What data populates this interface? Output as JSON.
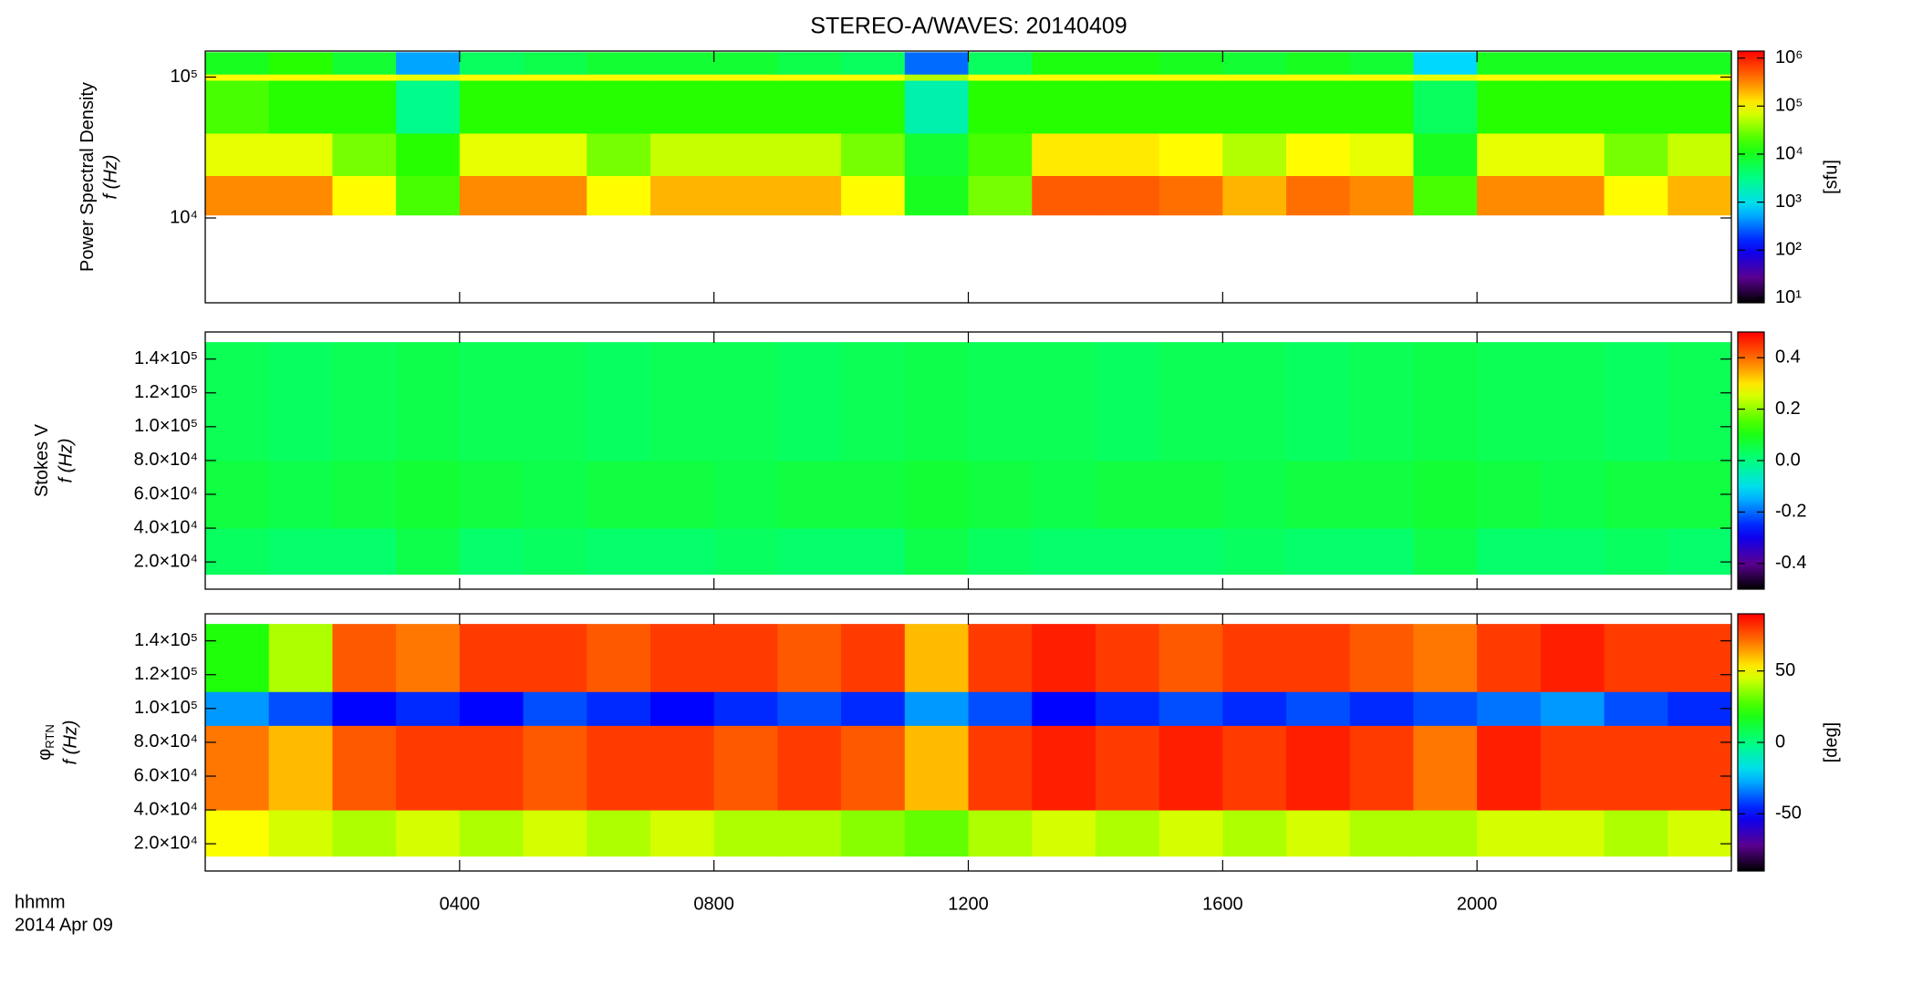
{
  "chart_data": [
    {
      "type": "spectrogram",
      "title": "STEREO-A/WAVES: 20140409",
      "ylabel": "Power Spectral Density",
      "ylabel2": "f (Hz)",
      "ylog": true,
      "ylim": [
        2500,
        153000
      ],
      "yticks": [
        {
          "value": 10000,
          "label": "10⁴"
        },
        {
          "value": 100000,
          "label": "10⁵"
        }
      ],
      "x_bins": [
        0,
        1,
        2,
        3,
        4,
        5,
        6,
        7,
        8,
        9,
        10,
        11,
        12,
        13,
        14,
        15,
        16,
        17,
        18,
        19,
        20,
        21,
        22,
        23,
        24
      ],
      "y_bins": [
        10500,
        20000,
        40000,
        95000,
        105000,
        150000
      ],
      "values": [
        [
          300000,
          300000,
          100000,
          20000,
          300000,
          300000,
          100000,
          200000,
          200000,
          200000,
          100000,
          10000,
          30000,
          500000,
          500000,
          400000,
          200000,
          400000,
          300000,
          20000,
          300000,
          300000,
          100000,
          200000
        ],
        [
          80000,
          80000,
          30000,
          15000,
          80000,
          80000,
          30000,
          60000,
          60000,
          60000,
          30000,
          8000,
          20000,
          120000,
          120000,
          100000,
          50000,
          100000,
          80000,
          10000,
          80000,
          80000,
          30000,
          60000
        ],
        [
          20000,
          15000,
          15000,
          3000,
          15000,
          15000,
          15000,
          15000,
          15000,
          15000,
          15000,
          2000,
          15000,
          15000,
          15000,
          15000,
          15000,
          15000,
          15000,
          5000,
          15000,
          15000,
          15000,
          15000
        ],
        [
          100000,
          100000,
          100000,
          80000,
          100000,
          100000,
          100000,
          100000,
          100000,
          100000,
          100000,
          50000,
          100000,
          100000,
          100000,
          100000,
          100000,
          100000,
          100000,
          80000,
          100000,
          100000,
          100000,
          100000
        ],
        [
          10000,
          15000,
          8000,
          500,
          5000,
          6000,
          8000,
          8000,
          8000,
          6000,
          5000,
          300,
          5000,
          12000,
          12000,
          10000,
          8000,
          10000,
          8000,
          800,
          10000,
          10000,
          10000,
          10000
        ]
      ],
      "colormap": "rainbow",
      "zlog": true,
      "zlim": [
        8,
        1400000
      ],
      "zticks": [
        {
          "value": 10,
          "label": "10¹"
        },
        {
          "value": 100,
          "label": "10²"
        },
        {
          "value": 1000,
          "label": "10³"
        },
        {
          "value": 10000,
          "label": "10⁴"
        },
        {
          "value": 100000,
          "label": "10⁵"
        },
        {
          "value": 1000000,
          "label": "10⁶"
        }
      ],
      "zlabel": "[sfu]"
    },
    {
      "type": "spectrogram",
      "ylabel": "Stokes V",
      "ylabel2": "f (Hz)",
      "ylog": false,
      "ylim": [
        3900,
        156000
      ],
      "yticks": [
        {
          "value": 20000,
          "label": "2.0×10⁴"
        },
        {
          "value": 40000,
          "label": "4.0×10⁴"
        },
        {
          "value": 60000,
          "label": "6.0×10⁴"
        },
        {
          "value": 80000,
          "label": "8.0×10⁴"
        },
        {
          "value": 100000,
          "label": "1.0×10⁵"
        },
        {
          "value": 120000,
          "label": "1.2×10⁵"
        },
        {
          "value": 140000,
          "label": "1.4×10⁵"
        }
      ],
      "x_bins": [
        0,
        1,
        2,
        3,
        4,
        5,
        6,
        7,
        8,
        9,
        10,
        11,
        12,
        13,
        14,
        15,
        16,
        17,
        18,
        19,
        20,
        21,
        22,
        23,
        24
      ],
      "y_bins": [
        12700,
        40000,
        80000,
        150000
      ],
      "values": [
        [
          0.03,
          0.02,
          0.02,
          0.05,
          0.02,
          0.03,
          0.02,
          0.02,
          0.03,
          0.02,
          0.02,
          0.05,
          0.03,
          0.02,
          0.02,
          0.02,
          0.03,
          0.02,
          0.02,
          0.05,
          0.02,
          0.02,
          0.03,
          0.02
        ],
        [
          0.06,
          0.05,
          0.06,
          0.07,
          0.06,
          0.05,
          0.06,
          0.06,
          0.05,
          0.06,
          0.06,
          0.07,
          0.06,
          0.05,
          0.06,
          0.06,
          0.05,
          0.06,
          0.06,
          0.07,
          0.06,
          0.05,
          0.06,
          0.06
        ],
        [
          0.04,
          0.03,
          0.04,
          0.05,
          0.04,
          0.04,
          0.03,
          0.04,
          0.04,
          0.03,
          0.04,
          0.05,
          0.04,
          0.04,
          0.03,
          0.04,
          0.04,
          0.03,
          0.04,
          0.05,
          0.04,
          0.04,
          0.03,
          0.04
        ]
      ],
      "colormap": "rainbow",
      "zlog": false,
      "zlim": [
        -0.5,
        0.5
      ],
      "zticks": [
        -0.4,
        -0.2,
        {
          "value": 0,
          "label": "0.0"
        },
        0.2,
        0.4
      ]
    },
    {
      "type": "spectrogram",
      "ylabel": "φ",
      "ylabel_sub": "RTN",
      "ylabel2": "f (Hz)",
      "ylog": false,
      "ylim": [
        3900,
        156000
      ],
      "yticks": [
        {
          "value": 20000,
          "label": "2.0×10⁴"
        },
        {
          "value": 40000,
          "label": "4.0×10⁴"
        },
        {
          "value": 60000,
          "label": "6.0×10⁴"
        },
        {
          "value": 80000,
          "label": "8.0×10⁴"
        },
        {
          "value": 100000,
          "label": "1.0×10⁵"
        },
        {
          "value": 120000,
          "label": "1.2×10⁵"
        },
        {
          "value": 140000,
          "label": "1.4×10⁵"
        }
      ],
      "x_bins": [
        0,
        1,
        2,
        3,
        4,
        5,
        6,
        7,
        8,
        9,
        10,
        11,
        12,
        13,
        14,
        15,
        16,
        17,
        18,
        19,
        20,
        21,
        22,
        23,
        24
      ],
      "y_bins": [
        12700,
        40000,
        90000,
        110000,
        150000
      ],
      "values": [
        [
          50,
          45,
          40,
          45,
          40,
          45,
          40,
          45,
          40,
          40,
          35,
          30,
          40,
          45,
          40,
          45,
          40,
          45,
          40,
          40,
          45,
          45,
          40,
          45
        ],
        [
          70,
          60,
          75,
          80,
          80,
          75,
          80,
          80,
          75,
          80,
          75,
          60,
          80,
          85,
          80,
          85,
          80,
          85,
          80,
          70,
          85,
          80,
          80,
          80
        ],
        [
          -30,
          -40,
          -50,
          -45,
          -50,
          -40,
          -45,
          -50,
          -45,
          -40,
          -45,
          -30,
          -40,
          -50,
          -45,
          -40,
          -45,
          -40,
          -45,
          -40,
          -35,
          -30,
          -40,
          -45
        ],
        [
          20,
          40,
          75,
          70,
          80,
          80,
          75,
          80,
          80,
          75,
          80,
          60,
          80,
          85,
          80,
          75,
          80,
          80,
          75,
          70,
          80,
          85,
          80,
          80
        ]
      ],
      "colormap": "rainbow",
      "zlog": false,
      "zlim": [
        -90,
        90
      ],
      "zticks": [
        -50,
        0,
        50
      ],
      "zlabel": "[deg]",
      "xlim": [
        0,
        24
      ],
      "xticks": [
        {
          "value": 4,
          "label": "0400"
        },
        {
          "value": 8,
          "label": "0800"
        },
        {
          "value": 12,
          "label": "1200"
        },
        {
          "value": 16,
          "label": "1600"
        },
        {
          "value": 20,
          "label": "2000"
        }
      ],
      "xlabel": "hhmm",
      "date": "2014 Apr 09"
    }
  ]
}
